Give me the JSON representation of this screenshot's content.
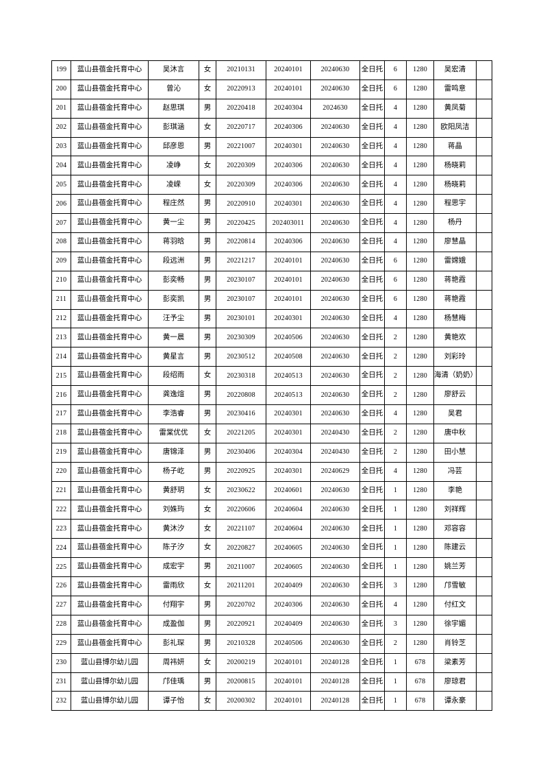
{
  "table": {
    "column_keys": [
      "row-number",
      "institution-name",
      "child-name",
      "gender",
      "birth-date",
      "start-date",
      "end-date",
      "care-type",
      "months",
      "fee",
      "guardian-name",
      "blank-cell"
    ],
    "rows": [
      [
        "199",
        "蓝山县蓓金托育中心",
        "吴沐言",
        "女",
        "20210131",
        "20240101",
        "20240630",
        "全日托",
        "6",
        "1280",
        "吴宏清",
        ""
      ],
      [
        "200",
        "蓝山县蓓金托育中心",
        "曾沁",
        "女",
        "20220913",
        "20240101",
        "20240630",
        "全日托",
        "6",
        "1280",
        "雷鸣意",
        ""
      ],
      [
        "201",
        "蓝山县蓓金托育中心",
        "赵思琪",
        "男",
        "20220418",
        "20240304",
        "2024630",
        "全日托",
        "4",
        "1280",
        "黄凤菊",
        ""
      ],
      [
        "202",
        "蓝山县蓓金托育中心",
        "彭琪涵",
        "女",
        "20220717",
        "20240306",
        "20240630",
        "全日托",
        "4",
        "1280",
        "欧阳凤洁",
        ""
      ],
      [
        "203",
        "蓝山县蓓金托育中心",
        "邱彦恩",
        "男",
        "20221007",
        "20240301",
        "20240630",
        "全日托",
        "4",
        "1280",
        "蒋晶",
        ""
      ],
      [
        "204",
        "蓝山县蓓金托育中心",
        "凌峥",
        "女",
        "20220309",
        "20240306",
        "20240630",
        "全日托",
        "4",
        "1280",
        "杨晓莉",
        ""
      ],
      [
        "205",
        "蓝山县蓓金托育中心",
        "凌嵘",
        "女",
        "20220309",
        "20240306",
        "20240630",
        "全日托",
        "4",
        "1280",
        "杨晓莉",
        ""
      ],
      [
        "206",
        "蓝山县蓓金托育中心",
        "程庄然",
        "男",
        "20220910",
        "20240301",
        "20240630",
        "全日托",
        "4",
        "1280",
        "程思宇",
        ""
      ],
      [
        "207",
        "蓝山县蓓金托育中心",
        "黄一尘",
        "男",
        "20220425",
        "202403011",
        "20240630",
        "全日托",
        "4",
        "1280",
        "杨丹",
        ""
      ],
      [
        "208",
        "蓝山县蓓金托育中心",
        "蒋羽晗",
        "男",
        "20220814",
        "20240306",
        "20240630",
        "全日托",
        "4",
        "1280",
        "廖慧晶",
        ""
      ],
      [
        "209",
        "蓝山县蓓金托育中心",
        "段远洲",
        "男",
        "20221217",
        "20240101",
        "20240630",
        "全日托",
        "6",
        "1280",
        "雷嫦娥",
        ""
      ],
      [
        "210",
        "蓝山县蓓金托育中心",
        "彭奕畅",
        "男",
        "20230107",
        "20240101",
        "20240630",
        "全日托",
        "6",
        "1280",
        "蒋艳霞",
        ""
      ],
      [
        "211",
        "蓝山县蓓金托育中心",
        "彭奕凯",
        "男",
        "20230107",
        "20240101",
        "20240630",
        "全日托",
        "6",
        "1280",
        "蒋艳霞",
        ""
      ],
      [
        "212",
        "蓝山县蓓金托育中心",
        "汪予尘",
        "男",
        "20230101",
        "20240301",
        "20240630",
        "全日托",
        "4",
        "1280",
        "杨慧梅",
        ""
      ],
      [
        "213",
        "蓝山县蓓金托育中心",
        "黄一晨",
        "男",
        "20230309",
        "20240506",
        "20240630",
        "全日托",
        "2",
        "1280",
        "黄艳欢",
        ""
      ],
      [
        "214",
        "蓝山县蓓金托育中心",
        "黄星言",
        "男",
        "20230512",
        "20240508",
        "20240630",
        "全日托",
        "2",
        "1280",
        "刘彩玲",
        ""
      ],
      [
        "215",
        "蓝山县蓓金托育中心",
        "段绍雨",
        "女",
        "20230318",
        "20240513",
        "20240630",
        "全日托",
        "2",
        "1280",
        "海清（奶奶）",
        ""
      ],
      [
        "216",
        "蓝山县蓓金托育中心",
        "龚逸煊",
        "男",
        "20220808",
        "20240513",
        "20240630",
        "全日托",
        "2",
        "1280",
        "廖舒云",
        ""
      ],
      [
        "217",
        "蓝山县蓓金托育中心",
        "李浩睿",
        "男",
        "20230416",
        "20240301",
        "20240630",
        "全日托",
        "4",
        "1280",
        "吴君",
        ""
      ],
      [
        "218",
        "蓝山县蓓金托育中心",
        "雷棠优优",
        "女",
        "20221205",
        "20240301",
        "20240430",
        "全日托",
        "2",
        "1280",
        "唐中秋",
        ""
      ],
      [
        "219",
        "蓝山县蓓金托育中心",
        "唐锦泽",
        "男",
        "20230406",
        "20240304",
        "20240430",
        "全日托",
        "2",
        "1280",
        "田小慧",
        ""
      ],
      [
        "220",
        "蓝山县蓓金托育中心",
        "杨子屹",
        "男",
        "20220925",
        "20240301",
        "20240629",
        "全日托",
        "4",
        "1280",
        "冯芸",
        ""
      ],
      [
        "221",
        "蓝山县蓓金托育中心",
        "黄舒玥",
        "女",
        "20230622",
        "20240601",
        "20240630",
        "全日托",
        "1",
        "1280",
        "李艳",
        ""
      ],
      [
        "222",
        "蓝山县蓓金托育中心",
        "刘姝玙",
        "女",
        "20220606",
        "20240604",
        "20240630",
        "全日托",
        "1",
        "1280",
        "刘祥辉",
        ""
      ],
      [
        "223",
        "蓝山县蓓金托育中心",
        "黄沐汐",
        "女",
        "20221107",
        "20240604",
        "20240630",
        "全日托",
        "1",
        "1280",
        "邓容容",
        ""
      ],
      [
        "224",
        "蓝山县蓓金托育中心",
        "陈子汐",
        "女",
        "20220827",
        "20240605",
        "20240630",
        "全日托",
        "1",
        "1280",
        "陈建云",
        ""
      ],
      [
        "225",
        "蓝山县蓓金托育中心",
        "成宏宇",
        "男",
        "20211007",
        "20240605",
        "20240630",
        "全日托",
        "1",
        "1280",
        "姚兰芳",
        ""
      ],
      [
        "226",
        "蓝山县蓓金托育中心",
        "雷雨欣",
        "女",
        "20211201",
        "20240409",
        "20240630",
        "全日托",
        "3",
        "1280",
        "邝雪敏",
        ""
      ],
      [
        "227",
        "蓝山县蓓金托育中心",
        "付翔宇",
        "男",
        "20220702",
        "20240306",
        "20240630",
        "全日托",
        "4",
        "1280",
        "付红文",
        ""
      ],
      [
        "228",
        "蓝山县蓓金托育中心",
        "成盈伽",
        "男",
        "20220921",
        "20240409",
        "20240630",
        "全日托",
        "3",
        "1280",
        "徐宇媚",
        ""
      ],
      [
        "229",
        "蓝山县蓓金托育中心",
        "彭礼琛",
        "男",
        "20210328",
        "20240506",
        "20240630",
        "全日托",
        "2",
        "1280",
        "肖铃芝",
        ""
      ],
      [
        "230",
        "蓝山县博尔幼儿园",
        "周祎妍",
        "女",
        "20200219",
        "20240101",
        "20240128",
        "全日托",
        "1",
        "678",
        "梁素芳",
        ""
      ],
      [
        "231",
        "蓝山县博尔幼儿园",
        "邝佳瑀",
        "男",
        "20200815",
        "20240101",
        "20240128",
        "全日托",
        "1",
        "678",
        "廖琼君",
        ""
      ],
      [
        "232",
        "蓝山县博尔幼儿园",
        "谭子怡",
        "女",
        "20200302",
        "20240101",
        "20240128",
        "全日托",
        "1",
        "678",
        "谭永豪",
        ""
      ]
    ]
  }
}
